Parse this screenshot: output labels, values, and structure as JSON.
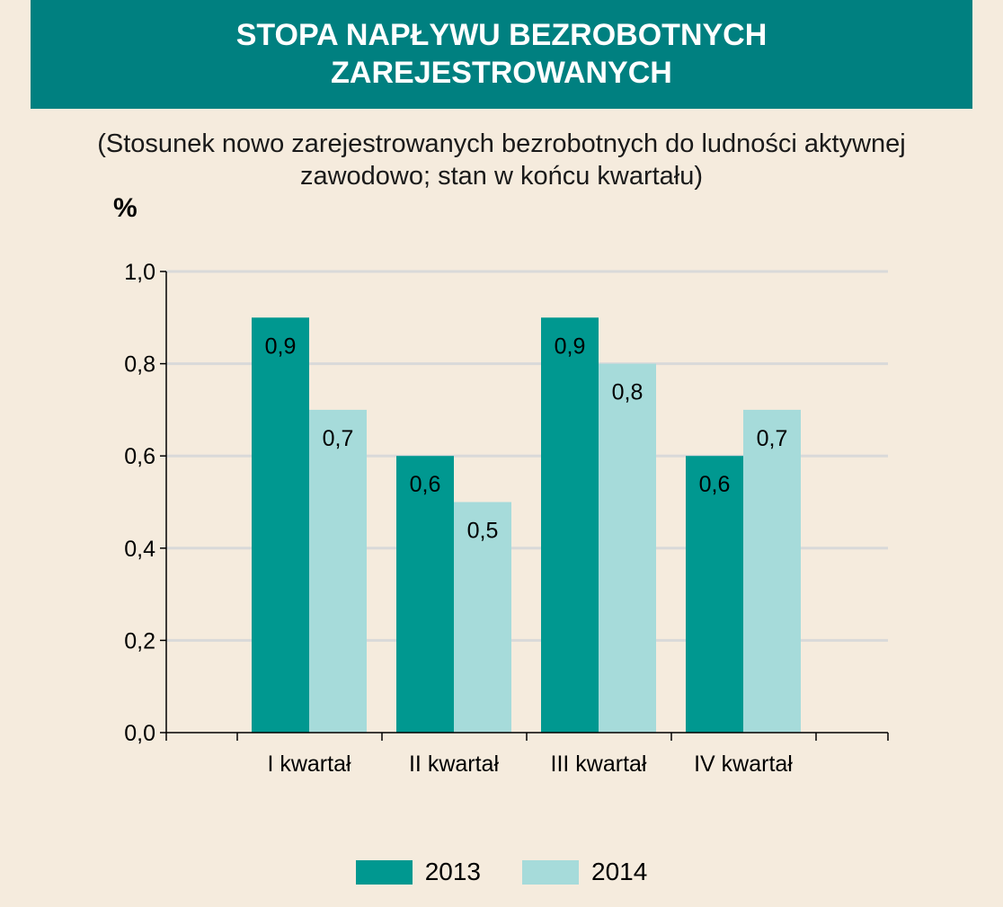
{
  "title": "STOPA NAPŁYWU BEZROBOTNYCH ZAREJESTROWANYCH",
  "subtitle": "(Stosunek nowo zarejestrowanych bezrobotnych do ludności aktywnej zawodowo; stan w końcu kwartału)",
  "colors": {
    "background": "#f5ebdd",
    "banner": "#008080",
    "series2013": "#009890",
    "series2014": "#a6dbda",
    "grid": "#d9d9d9"
  },
  "chart_data": {
    "type": "bar",
    "ylabel": "%",
    "ylim": [
      0,
      1.0
    ],
    "yticks": [
      "0,0",
      "0,2",
      "0,4",
      "0,6",
      "0,8",
      "1,0"
    ],
    "categories": [
      "I kwartał",
      "II kwartał",
      "III kwartał",
      "IV kwartał"
    ],
    "series": [
      {
        "name": "2013",
        "values": [
          0.9,
          0.6,
          0.9,
          0.6
        ],
        "labels": [
          "0,9",
          "0,6",
          "0,9",
          "0,6"
        ]
      },
      {
        "name": "2014",
        "values": [
          0.7,
          0.5,
          0.8,
          0.7
        ],
        "labels": [
          "0,7",
          "0,5",
          "0,8",
          "0,7"
        ]
      }
    ],
    "grid": true,
    "legend": "bottom"
  }
}
